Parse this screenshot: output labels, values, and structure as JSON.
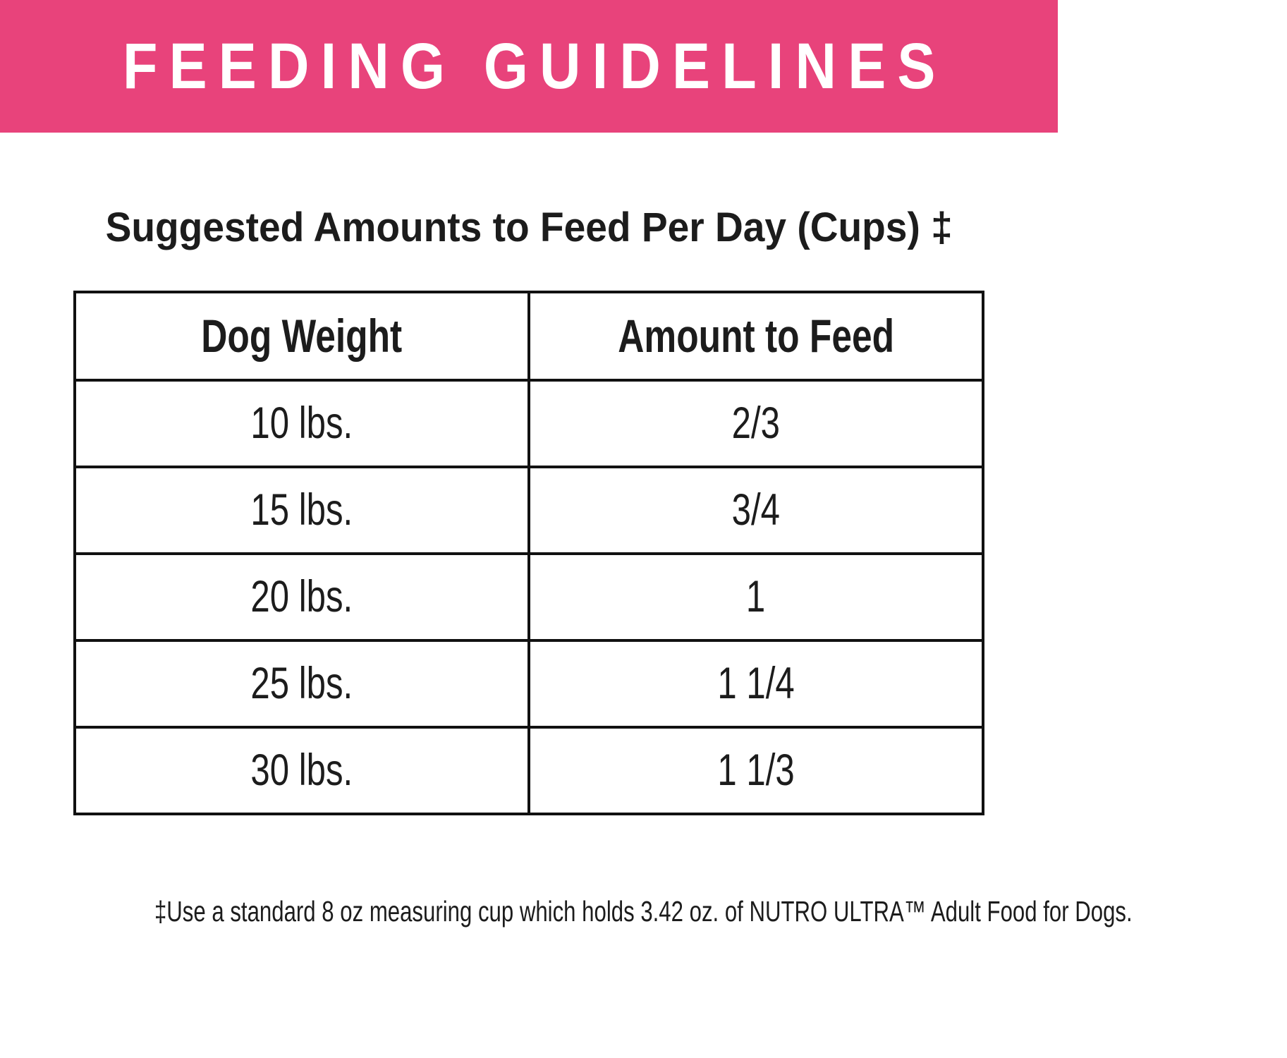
{
  "banner": {
    "title": "FEEDING GUIDELINES",
    "background_color": "#e8437b",
    "text_color": "#ffffff"
  },
  "section_title": "Suggested Amounts to Feed Per Day (Cups) ‡",
  "chart_data": {
    "type": "table",
    "title": "Suggested Amounts to Feed Per Day (Cups) ‡",
    "columns": [
      "Dog Weight",
      "Amount to Feed"
    ],
    "rows": [
      [
        "10 lbs.",
        "2/3"
      ],
      [
        "15 lbs.",
        "3/4"
      ],
      [
        "20 lbs.",
        "1"
      ],
      [
        "25 lbs.",
        "1 1/4"
      ],
      [
        "30 lbs.",
        "1 1/3"
      ]
    ]
  },
  "footnote": {
    "text": "‡Use a standard 8 oz measuring cup which holds 3.42 oz. of NUTRO ULTRA™ Adult Food for Dogs."
  },
  "colors": {
    "accent_pink": "#e8437b",
    "text_black": "#1c1c1c",
    "table_border": "#111111",
    "background": "#ffffff"
  }
}
